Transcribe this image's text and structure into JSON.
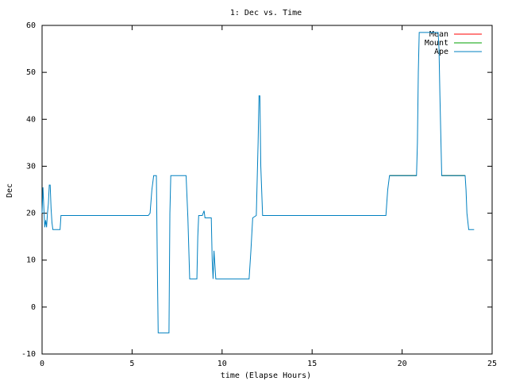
{
  "chart_data": {
    "type": "line",
    "title": "1: Dec vs. Time",
    "xlabel": "time (Elapse Hours)",
    "ylabel": "Dec",
    "xlim": [
      0,
      25
    ],
    "xticks": [
      0,
      5,
      10,
      15,
      20,
      25
    ],
    "ylim": [
      -10,
      60
    ],
    "yticks": [
      -10,
      0,
      10,
      20,
      30,
      40,
      50,
      60
    ],
    "grid": false,
    "legend": "top-right",
    "x": [
      0,
      0.05,
      0.1,
      0.15,
      0.2,
      0.25,
      0.3,
      0.35,
      0.4,
      0.45,
      0.5,
      0.55,
      0.6,
      1.0,
      1.05,
      5.9,
      6.0,
      6.1,
      6.2,
      6.35,
      6.4,
      6.45,
      7.05,
      7.1,
      7.15,
      8.0,
      8.1,
      8.2,
      8.6,
      8.65,
      8.7,
      8.9,
      9.0,
      9.05,
      9.4,
      9.45,
      9.5,
      9.55,
      9.6,
      9.65,
      11.5,
      11.6,
      11.7,
      11.9,
      12.0,
      12.05,
      12.1,
      12.15,
      12.25,
      19.1,
      19.2,
      19.3,
      20.8,
      20.85,
      20.9,
      20.95,
      22.0,
      22.05,
      22.1,
      22.2,
      23.5,
      23.55,
      23.6,
      23.7,
      24.0
    ],
    "series": [
      {
        "name": "Mean",
        "color": "#ff0000",
        "values": [
          null,
          null,
          null,
          null,
          null,
          null,
          null,
          null,
          null,
          null,
          null,
          null,
          null,
          null,
          null,
          null,
          null,
          null,
          null,
          null,
          null,
          null,
          null,
          null,
          null,
          null,
          null,
          null,
          null,
          null,
          null,
          null,
          null,
          null,
          null,
          null,
          null,
          null,
          null,
          null,
          null,
          null,
          null,
          null,
          null,
          null,
          null,
          null,
          null,
          null,
          null,
          28,
          28,
          null,
          null,
          null,
          null,
          null,
          null,
          28,
          28,
          null,
          null,
          null,
          null
        ]
      },
      {
        "name": "Mount",
        "color": "#00a000",
        "values": [
          null,
          null,
          null,
          null,
          null,
          null,
          null,
          null,
          null,
          null,
          null,
          null,
          null,
          null,
          null,
          null,
          null,
          null,
          null,
          null,
          null,
          null,
          null,
          null,
          null,
          null,
          null,
          null,
          null,
          null,
          null,
          null,
          null,
          null,
          null,
          null,
          null,
          null,
          null,
          null,
          null,
          null,
          null,
          null,
          null,
          null,
          null,
          null,
          null,
          null,
          null,
          28,
          28,
          null,
          null,
          null,
          null,
          null,
          null,
          28,
          28,
          null,
          null,
          null,
          null
        ]
      },
      {
        "name": "Ape",
        "color": "#0080c0",
        "values": [
          20,
          25.5,
          21,
          17,
          18.5,
          17,
          20,
          22,
          26,
          26,
          21,
          18,
          16.5,
          16.5,
          19.5,
          19.5,
          20,
          25,
          28,
          28,
          10,
          -5.5,
          -5.5,
          20,
          28,
          28,
          19,
          6,
          6,
          15,
          19.5,
          19.5,
          20.5,
          19,
          19,
          10,
          6,
          12,
          9,
          6,
          6,
          12,
          19,
          19.5,
          35,
          45,
          45,
          30,
          19.5,
          19.5,
          25,
          28,
          28,
          35,
          50,
          58.5,
          58.5,
          55,
          45,
          28,
          28,
          25,
          20,
          16.5,
          16.5
        ]
      }
    ]
  }
}
